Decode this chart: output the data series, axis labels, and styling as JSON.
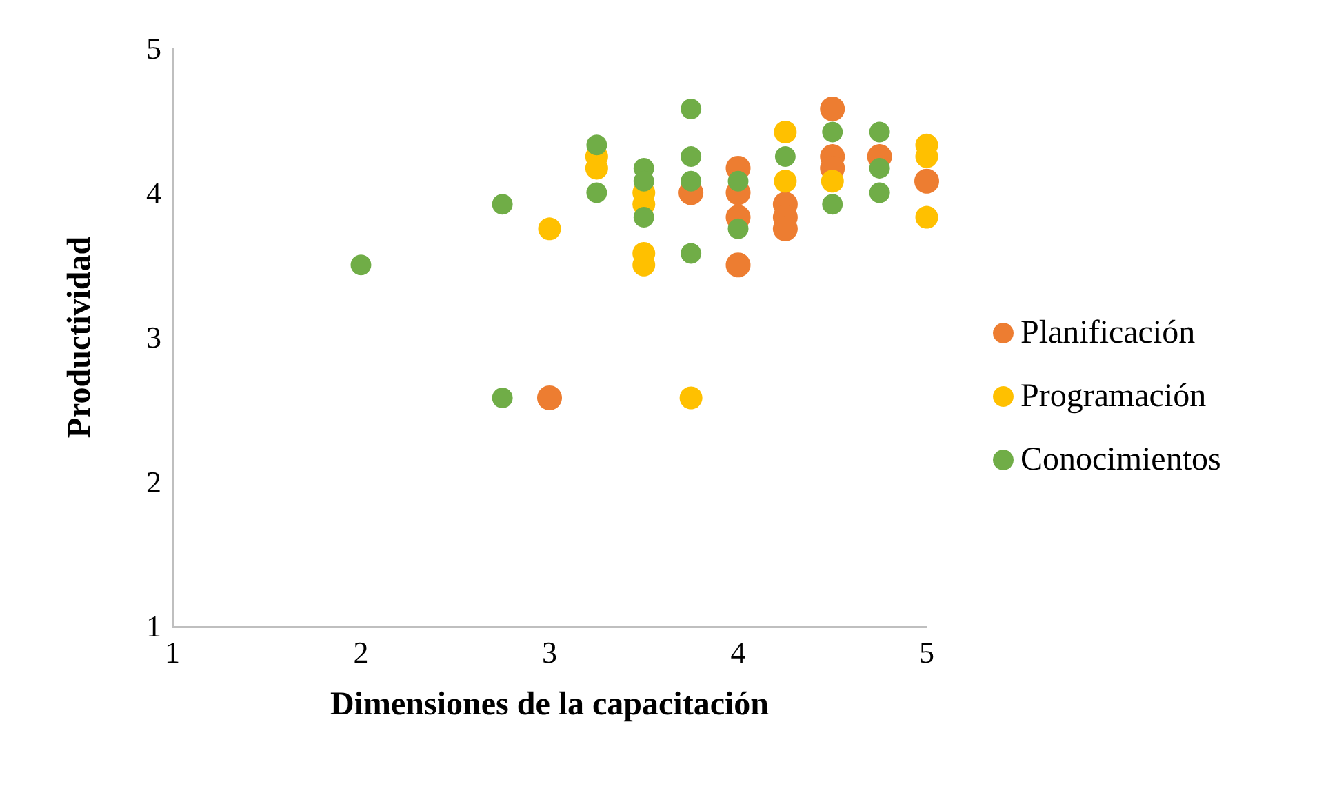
{
  "chart_data": {
    "type": "scatter",
    "xlabel": "Dimensiones de la capacitación",
    "ylabel": "Productividad",
    "xlim": [
      1,
      5
    ],
    "xticks": [
      1,
      2,
      3,
      4,
      5
    ],
    "ylim": [
      1,
      5
    ],
    "yticks": [
      1,
      2,
      3,
      4,
      5
    ],
    "grid": false,
    "legend": "right",
    "marker": "circle",
    "series": [
      {
        "name": "Planificación",
        "color": "#ed7d31",
        "x": [
          3,
          3.75,
          4,
          4,
          4,
          4,
          4.25,
          4.25,
          4.25,
          4.5,
          4.5,
          4.5,
          4.75,
          5
        ],
        "values": [
          2.58,
          4.0,
          4.17,
          4.0,
          3.83,
          3.5,
          3.92,
          3.83,
          3.75,
          4.58,
          4.25,
          4.17,
          4.25,
          4.08
        ]
      },
      {
        "name": "Programación",
        "color": "#ffc000",
        "x": [
          3,
          3.25,
          3.25,
          3.5,
          3.5,
          3.5,
          3.5,
          3.75,
          4.25,
          4.25,
          4.5,
          5,
          5,
          5
        ],
        "values": [
          3.75,
          4.25,
          4.17,
          4.0,
          3.92,
          3.58,
          3.5,
          2.58,
          4.42,
          4.08,
          4.08,
          4.33,
          4.25,
          3.83
        ]
      },
      {
        "name": "Conocimientos",
        "color": "#70ad47",
        "x": [
          2,
          2.75,
          2.75,
          3.25,
          3.25,
          3.5,
          3.5,
          3.5,
          3.75,
          3.75,
          3.75,
          3.75,
          4,
          4,
          4.25,
          4.5,
          4.5,
          4.75,
          4.75,
          4.75
        ],
        "values": [
          3.5,
          3.92,
          2.58,
          4.33,
          4.0,
          4.17,
          4.08,
          3.83,
          4.58,
          4.25,
          4.08,
          3.58,
          4.08,
          3.75,
          4.25,
          4.42,
          3.92,
          4.42,
          4.17,
          4.0
        ]
      }
    ]
  }
}
